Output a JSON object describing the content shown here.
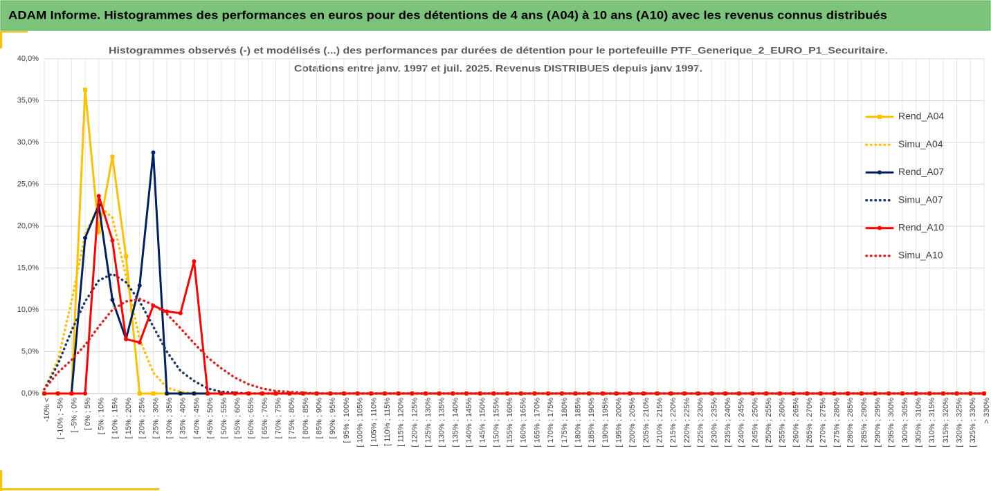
{
  "header": {
    "title": "ADAM Informe. Histogrammes des performances en euros pour des détentions de 4 ans (A04) à 10 ans (A10) avec les revenus connus distribués"
  },
  "chart_data": {
    "type": "line",
    "title": [
      "Histogrammes observés (-) et modélisés (...) des performances par durées de détention pour le portefeuille PTF_Generique_2_EURO_P1_Securitaire.",
      "Cotations entre janv. 1997 et juil. 2025. Revenus DISTRIBUES depuis janv 1997."
    ],
    "categories": [
      "-10% <",
      "[ -10% ; -5%",
      "[ -5% ; 0%",
      "[ 0% ; 5%",
      "[ 5% ; 10%",
      "[ 10% ; 15%",
      "[ 15% ; 20%",
      "[ 20% ; 25%",
      "[ 25% ; 30%",
      "[ 30% ; 35%",
      "[ 35% ; 40%",
      "[ 40% ; 45%",
      "[ 45% ; 50%",
      "[ 50% ; 55%",
      "[ 55% ; 60%",
      "[ 60% ; 65%",
      "[ 65% ; 70%",
      "[ 70% ; 75%",
      "[ 75% ; 80%",
      "[ 80% ; 85%",
      "[ 85% ; 90%",
      "[ 90% ; 95%",
      "[ 95% ; 100%",
      "[ 100% ; 105%",
      "[ 105% ; 110%",
      "[ 110% ; 115%",
      "[ 115% ; 120%",
      "[ 120% ; 125%",
      "[ 125% ; 130%",
      "[ 130% ; 135%",
      "[ 135% ; 140%",
      "[ 140% ; 145%",
      "[ 145% ; 150%",
      "[ 150% ; 155%",
      "[ 155% ; 160%",
      "[ 160% ; 165%",
      "[ 165% ; 170%",
      "[ 170% ; 175%",
      "[ 175% ; 180%",
      "[ 180% ; 185%",
      "[ 185% ; 190%",
      "[ 190% ; 195%",
      "[ 195% ; 200%",
      "[ 200% ; 205%",
      "[ 205% ; 210%",
      "[ 210% ; 215%",
      "[ 215% ; 220%",
      "[ 220% ; 225%",
      "[ 225% ; 230%",
      "[ 230% ; 235%",
      "[ 235% ; 240%",
      "[ 240% ; 245%",
      "[ 245% ; 250%",
      "[ 250% ; 255%",
      "[ 255% ; 260%",
      "[ 260% ; 265%",
      "[ 265% ; 270%",
      "[ 270% ; 275%",
      "[ 275% ; 280%",
      "[ 280% ; 285%",
      "[ 285% ; 290%",
      "[ 290% ; 295%",
      "[ 295% ; 300%",
      "[ 300% ; 305%",
      "[ 305% ; 310%",
      "[ 310% ; 315%",
      "[ 315% ; 320%",
      "[ 320% ; 325%",
      "[ 325% ; 330%",
      "> 330%"
    ],
    "series": [
      {
        "name": "Rend_A04",
        "color": "#ffc000",
        "style": "solid",
        "marker": "square",
        "values": [
          0,
          0,
          0,
          36.3,
          19.3,
          28.3,
          16.4,
          0,
          0,
          0,
          0,
          0,
          0,
          0,
          0,
          0,
          0,
          0,
          0,
          0,
          0,
          0,
          0,
          0,
          0,
          0,
          0,
          0,
          0,
          0,
          0,
          0,
          0,
          0,
          0,
          0,
          0,
          0,
          0,
          0,
          0,
          0,
          0,
          0,
          0,
          0,
          0,
          0,
          0,
          0,
          0,
          0,
          0,
          0,
          0,
          0,
          0,
          0,
          0,
          0,
          0,
          0,
          0,
          0,
          0,
          0,
          0,
          0,
          0,
          0
        ]
      },
      {
        "name": "Simu_A04",
        "color": "#ffc000",
        "style": "dotted",
        "values": [
          0.5,
          4,
          11,
          19,
          22.5,
          21,
          14,
          6.5,
          2.5,
          0.7,
          0.2,
          0,
          0,
          0,
          0,
          0,
          0,
          0,
          0,
          0,
          0,
          0,
          0,
          0,
          0,
          0,
          0,
          0,
          0,
          0,
          0,
          0,
          0,
          0,
          0,
          0,
          0,
          0,
          0,
          0,
          0,
          0,
          0,
          0,
          0,
          0,
          0,
          0,
          0,
          0,
          0,
          0,
          0,
          0,
          0,
          0,
          0,
          0,
          0,
          0,
          0,
          0,
          0,
          0,
          0,
          0,
          0,
          0,
          0,
          0
        ]
      },
      {
        "name": "Rend_A07",
        "color": "#002060",
        "style": "solid",
        "marker": "circle",
        "values": [
          0,
          0,
          0,
          18.6,
          22.5,
          11.2,
          6.5,
          12.9,
          28.8,
          0,
          0,
          0,
          0,
          0,
          0,
          0,
          0,
          0,
          0,
          0,
          0,
          0,
          0,
          0,
          0,
          0,
          0,
          0,
          0,
          0,
          0,
          0,
          0,
          0,
          0,
          0,
          0,
          0,
          0,
          0,
          0,
          0,
          0,
          0,
          0,
          0,
          0,
          0,
          0,
          0,
          0,
          0,
          0,
          0,
          0,
          0,
          0,
          0,
          0,
          0,
          0,
          0,
          0,
          0,
          0,
          0,
          0,
          0,
          0,
          0
        ]
      },
      {
        "name": "Simu_A07",
        "color": "#1f3864",
        "style": "dotted",
        "values": [
          0.5,
          3.5,
          7.5,
          11,
          13.5,
          14.3,
          13.3,
          11,
          8,
          5,
          2.7,
          1.5,
          0.6,
          0.2,
          0.1,
          0,
          0,
          0,
          0,
          0,
          0,
          0,
          0,
          0,
          0,
          0,
          0,
          0,
          0,
          0,
          0,
          0,
          0,
          0,
          0,
          0,
          0,
          0,
          0,
          0,
          0,
          0,
          0,
          0,
          0,
          0,
          0,
          0,
          0,
          0,
          0,
          0,
          0,
          0,
          0,
          0,
          0,
          0,
          0,
          0,
          0,
          0,
          0,
          0,
          0,
          0,
          0,
          0,
          0,
          0
        ]
      },
      {
        "name": "Rend_A10",
        "color": "#ff0000",
        "style": "solid",
        "marker": "circle",
        "values": [
          0,
          0,
          0,
          0,
          23.6,
          18.3,
          6.5,
          6.1,
          10.5,
          9.8,
          9.6,
          15.8,
          0,
          0,
          0,
          0,
          0,
          0,
          0,
          0,
          0,
          0,
          0,
          0,
          0,
          0,
          0,
          0,
          0,
          0,
          0,
          0,
          0,
          0,
          0,
          0,
          0,
          0,
          0,
          0,
          0,
          0,
          0,
          0,
          0,
          0,
          0,
          0,
          0,
          0,
          0,
          0,
          0,
          0,
          0,
          0,
          0,
          0,
          0,
          0,
          0,
          0,
          0,
          0,
          0,
          0,
          0,
          0,
          0,
          0
        ]
      },
      {
        "name": "Simu_A10",
        "color": "#e02020",
        "style": "dotted",
        "values": [
          0.5,
          2.5,
          4,
          5.8,
          8,
          10,
          11,
          11.3,
          10.6,
          9.5,
          7.8,
          6,
          4.3,
          3,
          1.9,
          1.1,
          0.6,
          0.3,
          0.2,
          0.1,
          0,
          0,
          0,
          0,
          0,
          0,
          0,
          0,
          0,
          0,
          0,
          0,
          0,
          0,
          0,
          0,
          0,
          0,
          0,
          0,
          0,
          0,
          0,
          0,
          0,
          0,
          0,
          0,
          0,
          0,
          0,
          0,
          0,
          0,
          0,
          0,
          0,
          0,
          0,
          0,
          0,
          0,
          0,
          0,
          0,
          0,
          0,
          0,
          0,
          0
        ]
      }
    ],
    "ylim": [
      0,
      40
    ],
    "yticks": [
      {
        "value": 0,
        "label": "0,0%"
      },
      {
        "value": 5,
        "label": "5,0%"
      },
      {
        "value": 10,
        "label": "10,0%"
      },
      {
        "value": 15,
        "label": "15,0%"
      },
      {
        "value": 20,
        "label": "20,0%"
      },
      {
        "value": 25,
        "label": "25,0%"
      },
      {
        "value": 30,
        "label": "30,0%"
      },
      {
        "value": 35,
        "label": "35,0%"
      },
      {
        "value": 40,
        "label": "40,0%"
      }
    ],
    "grid": true,
    "legend": "right"
  }
}
